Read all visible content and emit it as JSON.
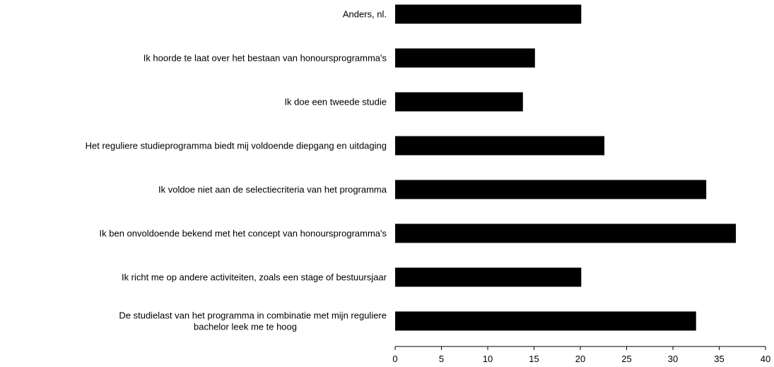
{
  "chart_data": {
    "type": "bar",
    "orientation": "horizontal",
    "title": "",
    "xlabel": "",
    "ylabel": "",
    "categories": [
      "Anders, nl.",
      "Ik hoorde te laat over het bestaan van honoursprogramma's",
      "Ik doe een tweede studie",
      "Het reguliere studieprogramma biedt mij voldoende diepgang en uitdaging",
      "Ik voldoe niet aan de selectiecriteria van het programma",
      "Ik ben onvoldoende bekend met het concept van honoursprogramma's",
      "Ik richt me op andere activiteiten, zoals een stage of bestuursjaar",
      "De studielast van het programma in combinatie met mijn reguliere bachelor leek me te hoog"
    ],
    "values": [
      20.1,
      15.1,
      13.8,
      22.6,
      33.6,
      36.8,
      20.1,
      32.5
    ],
    "xlim": [
      0,
      40
    ],
    "xticks": [
      "0",
      "5",
      "10",
      "15",
      "20",
      "25",
      "30",
      "35",
      "40"
    ],
    "grid": false,
    "legend": "none",
    "bar_color": "#000000"
  }
}
